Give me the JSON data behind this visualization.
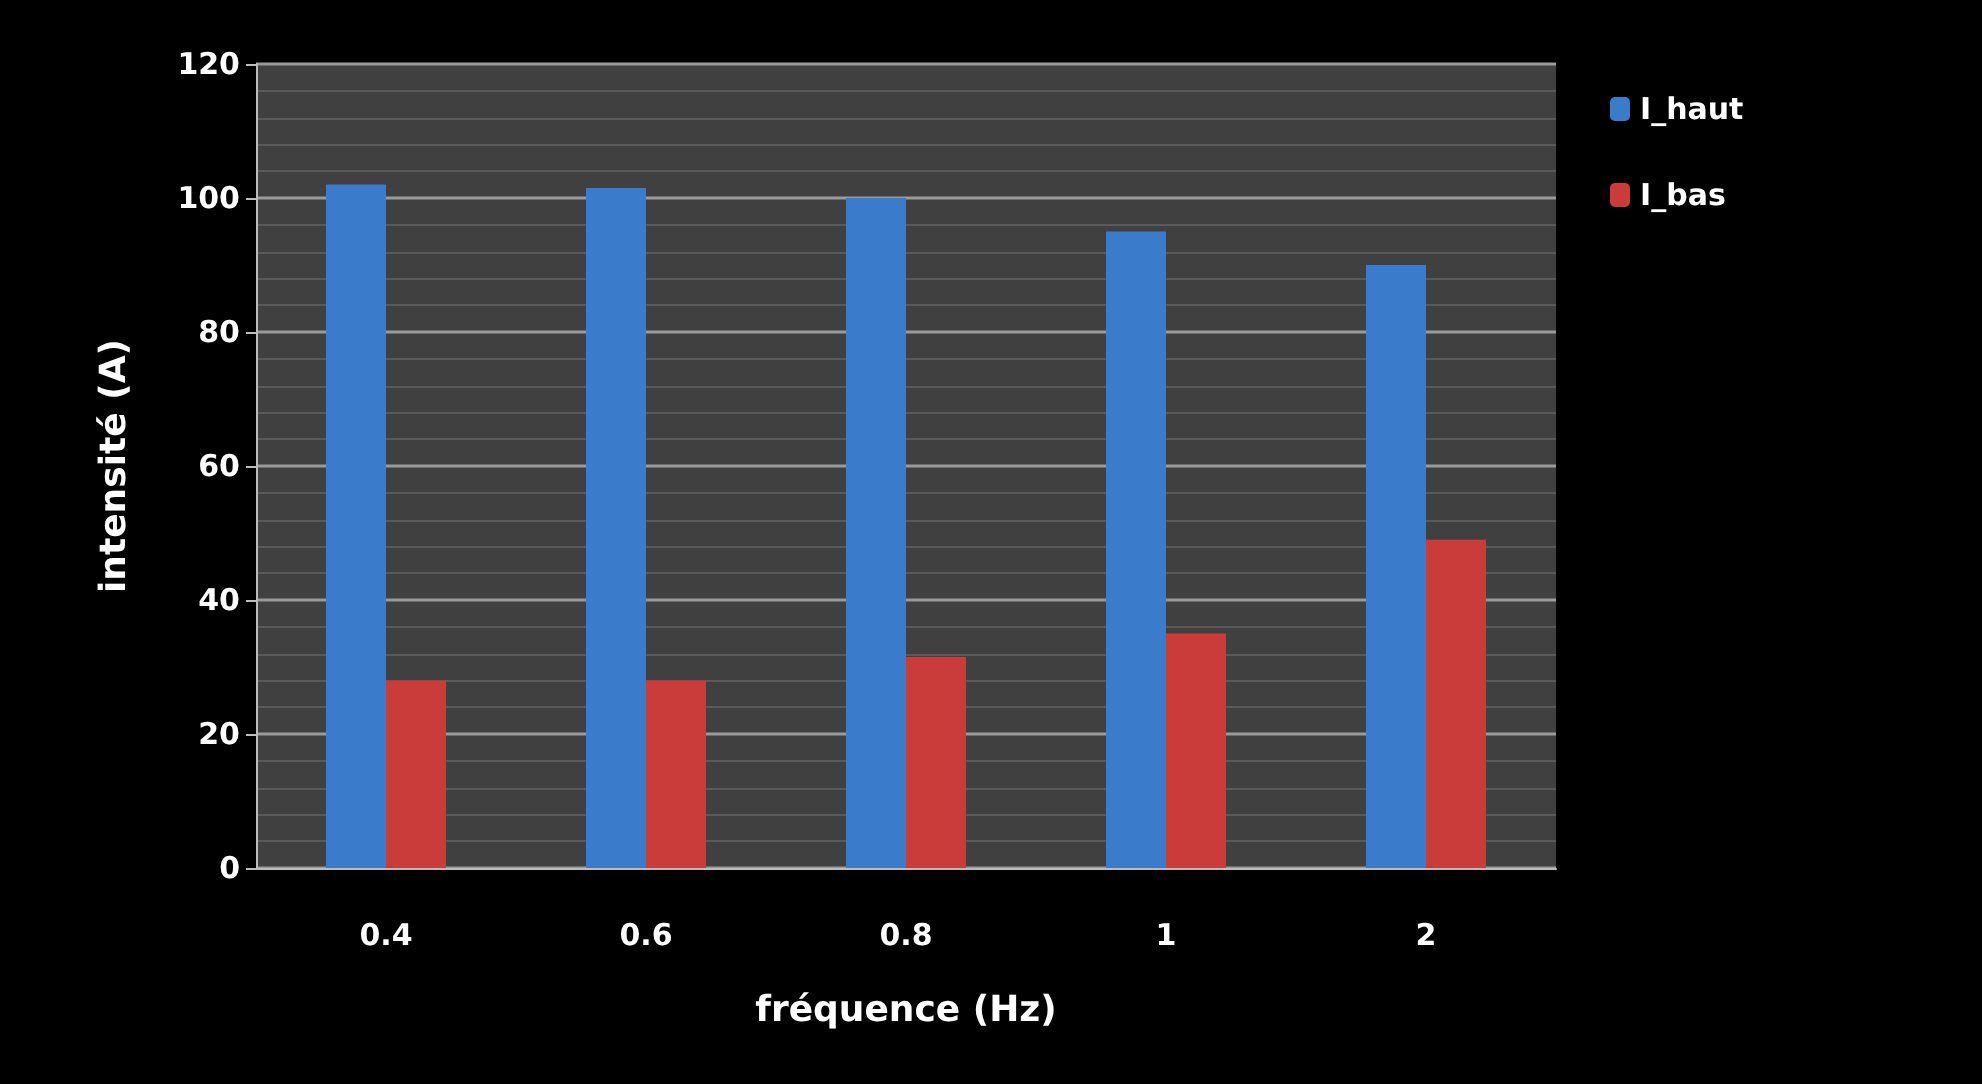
{
  "chart_data": {
    "type": "bar",
    "xlabel": "fréquence (Hz)",
    "ylabel": "intensité (A)",
    "categories": [
      "0.4",
      "0.6",
      "0.8",
      "1",
      "2"
    ],
    "series": [
      {
        "name": "I_haut",
        "color": "#3b7bcc",
        "values": [
          102,
          101.5,
          100,
          95,
          90
        ]
      },
      {
        "name": "I_bas",
        "color": "#c93c3a",
        "values": [
          28,
          28,
          31.5,
          35,
          49
        ]
      }
    ],
    "ylim": [
      0,
      120
    ],
    "yticks": [
      0,
      20,
      40,
      60,
      80,
      100,
      120
    ],
    "grid": "y",
    "legend": "top right"
  }
}
